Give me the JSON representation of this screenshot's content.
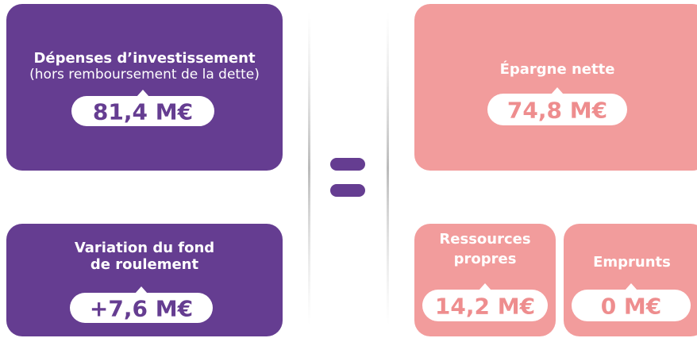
{
  "left": {
    "investment": {
      "title": "Dépenses d’investissement",
      "subtitle": "(hors remboursement de la dette)",
      "amount": "81,4 M€"
    },
    "working_capital": {
      "title_lines": [
        "Variation du fond",
        "de roulement"
      ],
      "amount": "+7,6 M€"
    }
  },
  "right": {
    "net_savings": {
      "title": "Épargne nette",
      "amount": "74,8 M€"
    },
    "own_resources": {
      "title_lines": [
        "Ressources",
        "propres"
      ],
      "amount": "14,2 M€"
    },
    "loans": {
      "title": "Emprunts",
      "amount": "0 M€"
    }
  }
}
